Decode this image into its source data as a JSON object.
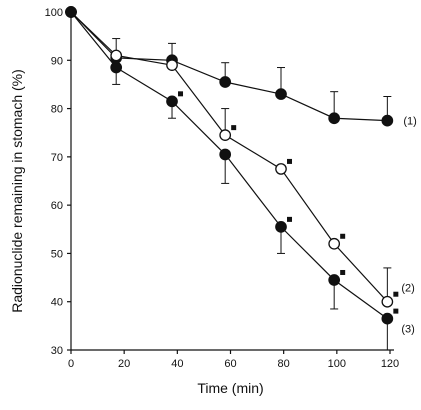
{
  "chart_data": {
    "type": "line",
    "xlabel": "Time (min)",
    "ylabel": "Radionuclide remaining in stomach (%)",
    "xlim": [
      0,
      120
    ],
    "ylim": [
      30,
      100
    ],
    "xticks": [
      "0",
      "20",
      "40",
      "60",
      "80",
      "100",
      "120"
    ],
    "yticks": [
      "30",
      "40",
      "50",
      "60",
      "70",
      "80",
      "90",
      "100"
    ],
    "grid": false,
    "legend": "none",
    "series": [
      {
        "name": "(1)",
        "marker": "filled-circle",
        "x": [
          0,
          17,
          38,
          58,
          79,
          99,
          119
        ],
        "y": [
          100,
          90.5,
          90,
          85.5,
          83,
          78,
          77.5
        ],
        "err_upper": [
          100,
          94.5,
          93.5,
          89.5,
          88.5,
          83.5,
          82.5
        ],
        "err_lower": [
          100,
          90.5,
          90,
          85.5,
          83,
          78,
          77.5
        ],
        "significant": [
          false,
          false,
          false,
          false,
          false,
          false,
          false
        ]
      },
      {
        "name": "(2)",
        "marker": "open-circle",
        "x": [
          0,
          17,
          38,
          58,
          79,
          99,
          119
        ],
        "y": [
          100,
          91,
          89,
          74.5,
          67.5,
          52,
          40
        ],
        "err_upper": [
          100,
          91,
          89,
          80,
          67.5,
          52,
          47
        ],
        "err_lower": [
          100,
          91,
          89,
          74.5,
          67.5,
          52,
          40
        ],
        "significant": [
          false,
          false,
          false,
          true,
          true,
          true,
          true
        ]
      },
      {
        "name": "(3)",
        "marker": "filled-circle",
        "x": [
          0,
          17,
          38,
          58,
          79,
          99,
          119
        ],
        "y": [
          100,
          88.5,
          81.5,
          70.5,
          55.5,
          44.5,
          36.5
        ],
        "err_upper": [
          100,
          88.5,
          81.5,
          70.5,
          55.5,
          44.5,
          36.5
        ],
        "err_lower": [
          100,
          85,
          78,
          64.5,
          50,
          38.5,
          30
        ],
        "significant": [
          false,
          false,
          true,
          false,
          true,
          true,
          true
        ]
      }
    ]
  }
}
